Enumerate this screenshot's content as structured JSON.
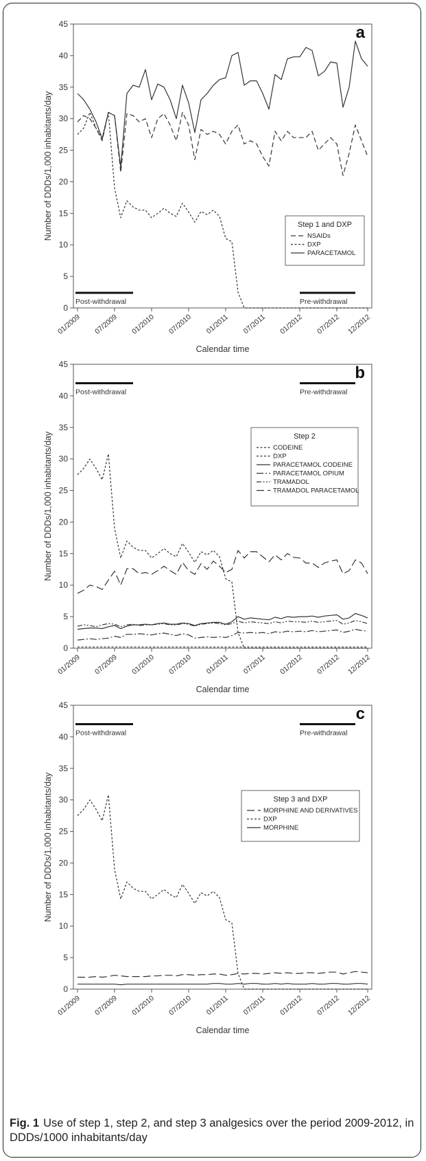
{
  "caption": {
    "label": "Fig. 1",
    "text": "Use of step 1, step 2, and step 3 analgesics over the period 2009-2012, in DDDs/1000 inhabitants/day"
  },
  "chart_data": [
    {
      "type": "line",
      "panel_letter": "a",
      "ylabel": "Number of DDDs/1,000 inhabitants/day",
      "xlabel": "Calendar time",
      "ylim": [
        0,
        45
      ],
      "yticks": [
        0,
        5,
        10,
        15,
        20,
        25,
        30,
        35,
        40,
        45
      ],
      "xticks": [
        "01/2009",
        "07/2009",
        "01/2010",
        "07/2010",
        "01/2011",
        "07/2011",
        "01/2012",
        "07/2012",
        "12/2012"
      ],
      "annotations": [
        "Post-withdrawal",
        "Pre-withdrawal"
      ],
      "legend": {
        "title": "Step 1 and DXP",
        "position": "middle-right"
      },
      "series": [
        {
          "name": "NSAIDs",
          "dash": "dashed",
          "values": [
            29.5,
            30.5,
            30,
            28.5,
            26.5,
            31,
            30.5,
            21.5,
            30.8,
            30.5,
            29.5,
            30,
            27,
            30,
            30.8,
            29,
            26.5,
            31,
            29,
            23.5,
            28.3,
            27.5,
            28,
            27.5,
            26,
            28,
            29,
            26,
            26.5,
            26,
            24,
            22.5,
            28,
            26.5,
            28,
            27,
            27,
            27,
            28,
            25,
            26,
            27,
            26,
            21,
            24.5,
            29,
            26.5,
            24
          ]
        },
        {
          "name": "DXP",
          "dash": "dotted",
          "values": [
            27.5,
            28.5,
            31,
            28.5,
            27,
            31,
            19,
            14.3,
            17,
            16,
            15.5,
            15.5,
            14.3,
            15,
            15.8,
            15,
            14.5,
            16.6,
            15.2,
            13.6,
            15.3,
            14.8,
            15.5,
            14.5,
            11,
            10.5,
            2.5,
            0,
            0,
            0,
            0,
            0,
            0,
            0,
            0,
            0,
            0,
            0,
            0,
            0,
            0,
            0,
            0,
            0,
            0,
            0,
            0,
            0
          ]
        },
        {
          "name": "PARACETAMOL",
          "dash": "solid",
          "values": [
            34,
            33,
            31.5,
            29.5,
            26.8,
            31,
            30.5,
            22.3,
            34,
            35.3,
            35,
            37.8,
            33,
            35.5,
            35,
            33,
            30,
            35.3,
            32.5,
            27.8,
            33,
            34,
            35.3,
            36.2,
            36.5,
            40,
            40.5,
            35.3,
            36,
            36,
            34,
            31.5,
            37,
            36.2,
            39.5,
            39.8,
            39.8,
            41.3,
            40.8,
            36.8,
            37.5,
            39,
            38.8,
            31.8,
            35,
            42.3,
            39.5,
            38.3
          ]
        }
      ]
    },
    {
      "type": "line",
      "panel_letter": "b",
      "ylabel": "Number of DDDs/1,000 inhabitants/day",
      "xlabel": "Calendar time",
      "ylim": [
        0,
        45
      ],
      "yticks": [
        0,
        5,
        10,
        15,
        20,
        25,
        30,
        35,
        40,
        45
      ],
      "xticks": [
        "01/2009",
        "07/2009",
        "01/2010",
        "07/2010",
        "01/2011",
        "07/2011",
        "01/2012",
        "07/2012",
        "12/2012"
      ],
      "annotations": [
        "Post-withdrawal",
        "Pre-withdrawal"
      ],
      "legend": {
        "title": "Step 2",
        "position": "upper-right"
      },
      "series": [
        {
          "name": "CODEINE",
          "dash": "dotted",
          "values": [
            0.2,
            0.2,
            0.2,
            0.2,
            0.2,
            0.2,
            0.2,
            0.2,
            0.2,
            0.2,
            0.2,
            0.2,
            0.2,
            0.2,
            0.2,
            0.2,
            0.2,
            0.2,
            0.2,
            0.2,
            0.2,
            0.2,
            0.2,
            0.2,
            0.2,
            0.2,
            0.2,
            0.2,
            0.2,
            0.2,
            0.2,
            0.2,
            0.2,
            0.2,
            0.2,
            0.2,
            0.2,
            0.2,
            0.2,
            0.2,
            0.2,
            0.2,
            0.2,
            0.2,
            0.2,
            0.2,
            0.2,
            0.2
          ]
        },
        {
          "name": "DXP",
          "dash": "dotted",
          "values": [
            27.5,
            28.5,
            30,
            28.5,
            26.7,
            30.8,
            19,
            14.3,
            17,
            16,
            15.5,
            15.5,
            14.3,
            15,
            15.8,
            15,
            14.5,
            16.6,
            15.2,
            13.6,
            15.3,
            14.8,
            15.5,
            14.5,
            11,
            10.5,
            2.5,
            0,
            0,
            0,
            0,
            0,
            0,
            0,
            0,
            0,
            0,
            0,
            0,
            0,
            0,
            0,
            0,
            0,
            0,
            0,
            0,
            0
          ]
        },
        {
          "name": "PARACETAMOL CODEINE",
          "dash": "solid",
          "values": [
            3,
            3.1,
            3.2,
            3.2,
            3.1,
            3.4,
            3.6,
            3.1,
            3.5,
            3.7,
            3.7,
            3.8,
            3.7,
            3.9,
            4,
            3.8,
            3.8,
            4,
            3.9,
            3.6,
            3.9,
            4,
            4.1,
            4.1,
            3.8,
            4.2,
            5,
            4.6,
            4.8,
            4.7,
            4.6,
            4.5,
            4.9,
            4.7,
            5,
            4.9,
            5,
            5,
            5.1,
            4.9,
            5.1,
            5.2,
            5.3,
            4.6,
            4.8,
            5.5,
            5.2,
            4.8
          ]
        },
        {
          "name": "PARACETAMOL OPIUM",
          "dash": "long-dash-dot",
          "values": [
            1.3,
            1.4,
            1.5,
            1.4,
            1.5,
            1.6,
            1.9,
            1.7,
            2.2,
            2.2,
            2.3,
            2.2,
            2.1,
            2.3,
            2.4,
            2.2,
            2,
            2.3,
            2.1,
            1.6,
            1.7,
            1.8,
            1.7,
            1.8,
            1.7,
            2,
            2.5,
            2.4,
            2.5,
            2.4,
            2.5,
            2.3,
            2.6,
            2.5,
            2.7,
            2.6,
            2.7,
            2.6,
            2.8,
            2.6,
            2.7,
            2.8,
            2.9,
            2.5,
            2.7,
            3,
            2.8,
            2.7
          ]
        },
        {
          "name": "TRAMADOL",
          "dash": "dash-dot-dot",
          "values": [
            3.5,
            3.7,
            3.6,
            3.4,
            3.7,
            3.9,
            3.8,
            3.4,
            3.7,
            3.8,
            3.6,
            3.7,
            3.7,
            3.8,
            3.9,
            3.7,
            3.7,
            3.9,
            3.8,
            3.5,
            3.8,
            3.9,
            4,
            3.9,
            3.7,
            3.9,
            4.3,
            4,
            4.2,
            4.1,
            4,
            3.9,
            4.2,
            4,
            4.3,
            4.2,
            4.2,
            4.1,
            4.3,
            4.1,
            4.2,
            4.3,
            4.4,
            3.8,
            4,
            4.4,
            4.2,
            3.9
          ]
        },
        {
          "name": "TRAMADOL PARACETAMOL",
          "dash": "long-dash",
          "values": [
            8.7,
            9.2,
            10,
            9.8,
            9.3,
            10.8,
            12.2,
            10,
            12.6,
            12.6,
            11.8,
            12,
            11.7,
            12.3,
            13,
            12.3,
            11.7,
            13.6,
            12.3,
            11.7,
            13.4,
            12.5,
            13.8,
            13,
            12,
            12.5,
            15.5,
            14.3,
            15.3,
            15.3,
            14.5,
            13.7,
            14.8,
            14,
            15,
            14.4,
            14.3,
            13.5,
            13.5,
            12.8,
            13.5,
            13.8,
            14,
            11.8,
            12.3,
            14,
            13.5,
            11.8
          ]
        }
      ]
    },
    {
      "type": "line",
      "panel_letter": "c",
      "ylabel": "Number of DDDs/1,000 inhabitants/day",
      "xlabel": "Calendar time",
      "ylim": [
        0,
        45
      ],
      "yticks": [
        0,
        5,
        10,
        15,
        20,
        25,
        30,
        35,
        40,
        45
      ],
      "xticks": [
        "01/2009",
        "07/2009",
        "01/2010",
        "07/2010",
        "01/2011",
        "07/2011",
        "01/2012",
        "07/2012",
        "12/2012"
      ],
      "annotations": [
        "Post-withdrawal",
        "Pre-withdrawal"
      ],
      "legend": {
        "title": "Step 3 and DXP",
        "position": "upper-right"
      },
      "series": [
        {
          "name": "MORPHINE AND DERIVATIVES",
          "dash": "long-dash",
          "values": [
            1.9,
            1.9,
            1.9,
            2,
            1.9,
            2,
            2.2,
            2.1,
            2,
            2,
            2,
            2,
            2.1,
            2.1,
            2.2,
            2.2,
            2.1,
            2.3,
            2.3,
            2.2,
            2.3,
            2.3,
            2.4,
            2.4,
            2.2,
            2.3,
            2.5,
            2.4,
            2.5,
            2.5,
            2.4,
            2.5,
            2.6,
            2.5,
            2.6,
            2.5,
            2.5,
            2.6,
            2.6,
            2.5,
            2.6,
            2.7,
            2.7,
            2.4,
            2.6,
            2.8,
            2.7,
            2.6
          ]
        },
        {
          "name": "DXP",
          "dash": "dotted",
          "values": [
            27.5,
            28.5,
            30,
            28.5,
            26.7,
            30.8,
            19,
            14.3,
            17,
            16,
            15.5,
            15.5,
            14.3,
            15,
            15.8,
            15,
            14.5,
            16.6,
            15.2,
            13.6,
            15.3,
            14.8,
            15.5,
            14.5,
            11,
            10.5,
            2.5,
            0,
            0,
            0,
            0,
            0,
            0,
            0,
            0,
            0,
            0,
            0,
            0,
            0,
            0,
            0,
            0,
            0,
            0,
            0,
            0,
            0
          ]
        },
        {
          "name": "MORPHINE",
          "dash": "solid",
          "values": [
            0.8,
            0.8,
            0.8,
            0.8,
            0.8,
            0.8,
            0.8,
            0.7,
            0.8,
            0.8,
            0.8,
            0.8,
            0.8,
            0.8,
            0.8,
            0.8,
            0.8,
            0.8,
            0.8,
            0.8,
            0.8,
            0.8,
            0.9,
            0.9,
            0.8,
            0.8,
            0.9,
            0.8,
            0.9,
            0.9,
            0.8,
            0.8,
            0.9,
            0.8,
            0.9,
            0.8,
            0.8,
            0.8,
            0.9,
            0.8,
            0.8,
            0.9,
            0.9,
            0.8,
            0.8,
            0.9,
            0.9,
            0.8
          ]
        }
      ]
    }
  ]
}
